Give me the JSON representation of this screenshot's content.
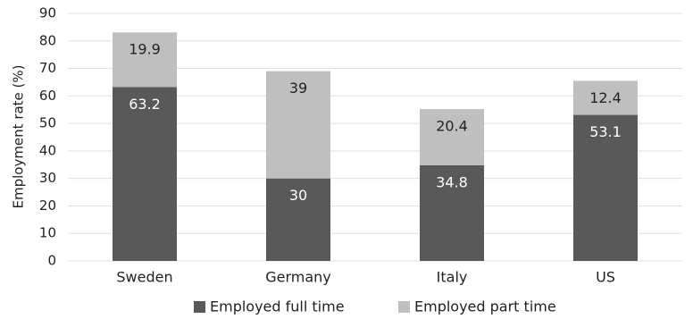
{
  "chart_data": {
    "type": "bar",
    "stacked": true,
    "categories": [
      "Sweden",
      "Germany",
      "Italy",
      "US"
    ],
    "series": [
      {
        "name": "Employed full time",
        "values": [
          63.2,
          30,
          34.8,
          53.1
        ],
        "labels": [
          "63.2",
          "30",
          "34.8",
          "53.1"
        ],
        "color": "#595959"
      },
      {
        "name": "Employed part time",
        "values": [
          19.9,
          39,
          20.4,
          12.4
        ],
        "labels": [
          "19.9",
          "39",
          "20.4",
          "12.4"
        ],
        "color": "#bfbfbf"
      }
    ],
    "title": "",
    "xlabel": "",
    "ylabel": "Employment rate (%)",
    "ylim": [
      0,
      90
    ],
    "yticks": [
      0,
      10,
      20,
      30,
      40,
      50,
      60,
      70,
      80,
      90
    ],
    "grid": true,
    "legend_position": "bottom"
  },
  "colors": {
    "grid": "#e0e0e0",
    "label_on_dark": "#ffffff",
    "label_on_light": "#222222"
  }
}
